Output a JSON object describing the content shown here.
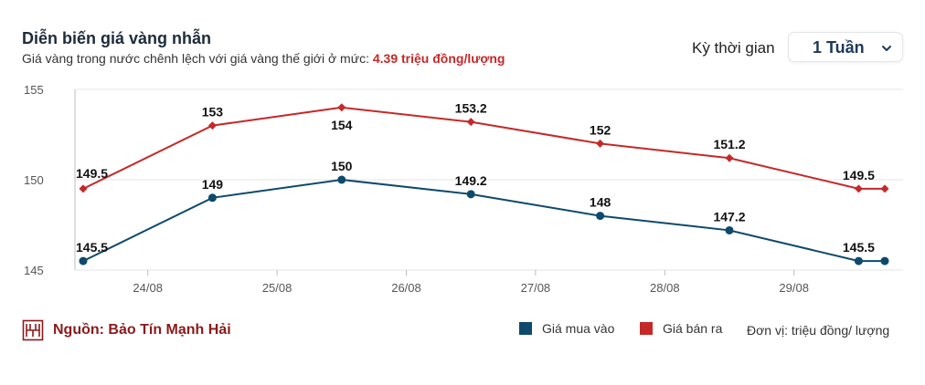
{
  "header": {
    "title": "Diễn biến giá vàng nhẫn",
    "subtitle_prefix": "Giá vàng trong nước chênh lệch với giá vàng thế giới ở mức:",
    "subtitle_highlight": "4.39 triệu đồng/lượng"
  },
  "period": {
    "label": "Kỳ thời gian",
    "selected": "1 Tuần"
  },
  "footer": {
    "source": "Nguồn: Bảo Tín Mạnh Hải",
    "unit": "Đơn vị: triệu đồng/ lượng",
    "legend_buy": "Giá mua vào",
    "legend_sell": "Giá bán ra"
  },
  "colors": {
    "buy": "#0d4a6b",
    "sell": "#c62828",
    "grid": "#e6e6e6",
    "brand": "#8b1a1a"
  },
  "icons": {
    "logo": "bao-tin-manh-hai-logo",
    "dropdown": "chevron-down-icon"
  },
  "chart_data": {
    "type": "line",
    "x_ticks": [
      "24/08",
      "25/08",
      "26/08",
      "27/08",
      "28/08",
      "29/08"
    ],
    "x": [
      0,
      1,
      2,
      3,
      4,
      5,
      6
    ],
    "ylim": [
      145,
      155
    ],
    "yticks": [
      145,
      150,
      155
    ],
    "grid": true,
    "series": [
      {
        "name": "Giá bán ra",
        "color": "#c62828",
        "marker": "diamond",
        "values": [
          149.5,
          153,
          154,
          153.2,
          152,
          151.2,
          149.5
        ],
        "labels": [
          "149.5",
          "153",
          "154",
          "153.2",
          "152",
          "151.2",
          "149.5"
        ],
        "extend_last": true
      },
      {
        "name": "Giá mua vào",
        "color": "#0d4a6b",
        "marker": "circle",
        "values": [
          145.5,
          149,
          150,
          149.2,
          148,
          147.2,
          145.5
        ],
        "labels": [
          "145.5",
          "149",
          "150",
          "149.2",
          "148",
          "147.2",
          "145.5"
        ],
        "extend_last": true
      }
    ]
  }
}
